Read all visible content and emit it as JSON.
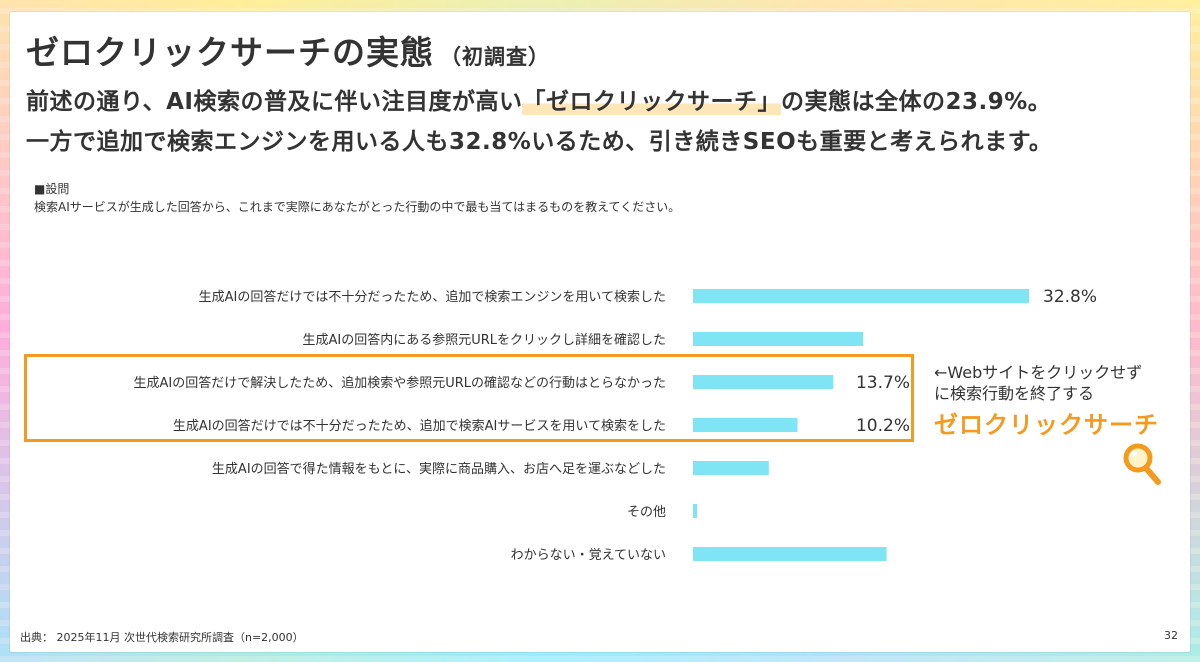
{
  "title": "ゼロクリックサーチの実態",
  "title_sub": "（初調査）",
  "lead": {
    "line1_pre": "前述の通り、AI検索の普及に伴い注目度が高い",
    "line1_highlight": "「ゼロクリックサーチ」",
    "line1_post": "の実態は全体の23.9%。",
    "line2": "一方で追加で検索エンジンを用いる人も32.8%いるため、引き続きSEOも重要と考えられます。"
  },
  "question": {
    "label": "■設問",
    "text": "検索AIサービスが生成した回答から、これまで実際にあなたがとった行動の中で最も当てはまるものを教えてください。"
  },
  "chart_data": {
    "type": "bar",
    "orientation": "horizontal",
    "categories": [
      "生成AIの回答だけでは不十分だったため、追加で検索エンジンを用いて検索した",
      "生成AIの回答内にある参照元URLをクリックし詳細を確認した",
      "生成AIの回答だけで解決したため、追加検索や参照元URLの確認などの行動はとらなかった",
      "生成AIの回答だけでは不十分だったため、追加で検索AIサービスを用いて検索をした",
      "生成AIの回答で得た情報をもとに、実際に商品購入、お店へ足を運ぶなどした",
      "その他",
      "わからない・覚えていない"
    ],
    "values": [
      32.8,
      16.6,
      13.7,
      10.2,
      7.4,
      0.4,
      18.9
    ],
    "data_labels": [
      "32.8%",
      "",
      "13.7%",
      "10.2%",
      "",
      "",
      ""
    ],
    "bar_color": "#7fe4f3",
    "xlim": [
      0,
      40
    ],
    "grid": false,
    "legend": "none"
  },
  "annotation": {
    "line1": "←Webサイトをクリックせず",
    "line2": "に検索行動を終了する",
    "emphasis": "ゼロクリックサーチ",
    "icon": "magnifier-icon"
  },
  "source": "出典： 2025年11月 次世代検索研究所調査（n=2,000）",
  "page_number": "32",
  "colors": {
    "accent": "#f39a1f",
    "text": "#333333",
    "highlight": "#fde6b8"
  }
}
